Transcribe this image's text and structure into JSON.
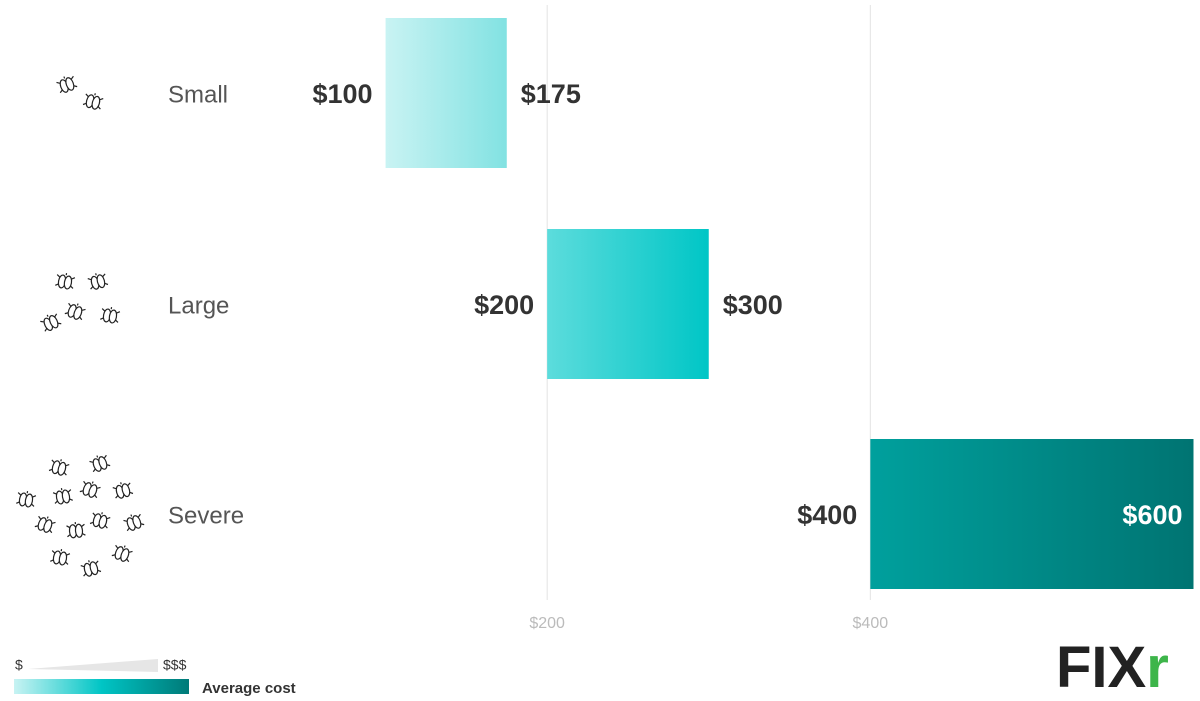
{
  "chart_data": {
    "type": "range-bar",
    "categories": [
      "Small",
      "Large",
      "Severe"
    ],
    "low": [
      100,
      200,
      400
    ],
    "high": [
      175,
      300,
      600
    ],
    "low_labels": [
      "$100",
      "$200",
      "$400"
    ],
    "high_labels": [
      "$175",
      "$300",
      "$600"
    ],
    "colors": [
      [
        "#c9f3f3",
        "#82e2e2"
      ],
      [
        "#5cdcdc",
        "#00c6c6"
      ],
      [
        "#00a09d",
        "#007472"
      ]
    ],
    "xlim": [
      0,
      600
    ],
    "xticks": [
      {
        "value": 200,
        "label": "$200"
      },
      {
        "value": 400,
        "label": "$400"
      }
    ],
    "grid": true,
    "legend": {
      "low": "$",
      "high": "$$$",
      "label": "Average cost",
      "colors": [
        "#c8f3f3",
        "#00c5c5",
        "#007a78"
      ]
    },
    "logo": {
      "text": "FIX",
      "accent": "r"
    }
  }
}
